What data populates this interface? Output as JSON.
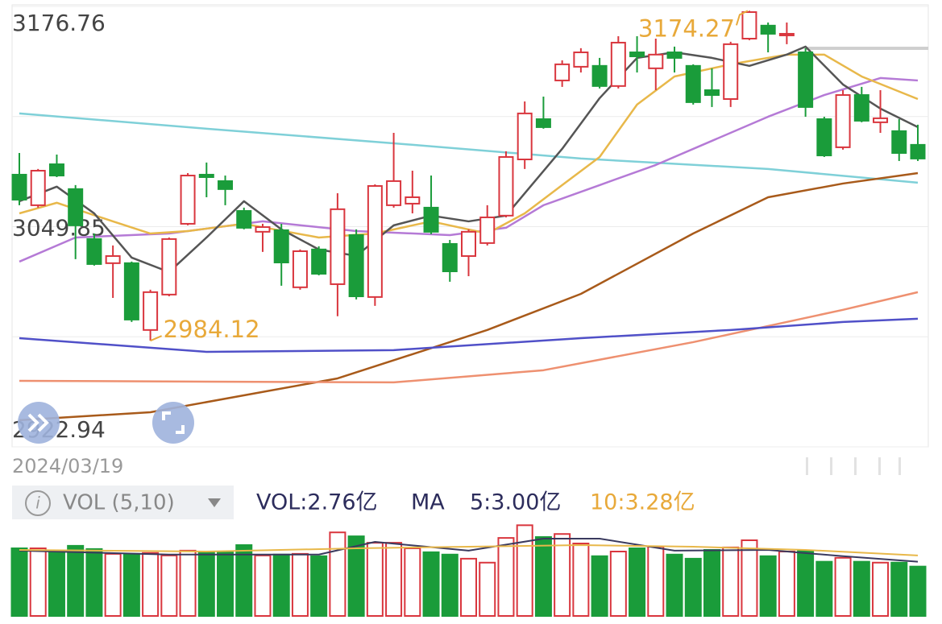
{
  "chart_data": {
    "type": "candlestick",
    "categories": [
      "2024/03/19",
      null,
      null,
      null,
      null,
      null,
      null,
      null,
      null,
      null,
      null,
      null,
      null,
      null,
      null,
      null,
      null,
      null,
      null,
      null,
      null,
      null,
      null,
      null,
      null,
      null,
      null,
      null,
      null,
      null,
      null,
      null,
      null,
      null,
      null,
      null,
      null,
      null,
      null,
      null,
      null,
      null,
      null,
      null,
      null,
      null,
      null,
      null,
      null
    ],
    "open": [
      3079.8,
      3062.2,
      3085.8,
      3071.5,
      3042.7,
      3028.8,
      3028.8,
      2990.3,
      3010.7,
      3051.5,
      3079.8,
      3076.1,
      3058.9,
      3046.9,
      3047.8,
      3014.9,
      3036.7,
      3016.7,
      3045.0,
      3009.3,
      3062.2,
      3063.1,
      3060.8,
      3039.9,
      3032.9,
      3040.4,
      3056.2,
      3088.6,
      3111.8,
      3134.1,
      3142.0,
      3142.5,
      3130.9,
      3150.3,
      3141.1,
      3150.3,
      3142.5,
      3128.5,
      3123.4,
      3158.2,
      3165.7,
      3160.1,
      3150.3,
      3111.8,
      3095.6,
      3125.7,
      3110.0,
      3104.9,
      3097.0
    ],
    "high": [
      3092.3,
      3083.1,
      3091.4,
      3073.8,
      3045.9,
      3039.0,
      3029.7,
      3013.5,
      3043.6,
      3080.7,
      3086.8,
      3079.3,
      3060.8,
      3051.5,
      3051.5,
      3036.7,
      3038.5,
      3069.1,
      3048.3,
      3074.2,
      3103.9,
      3082.1,
      3079.3,
      3042.2,
      3048.3,
      3062.2,
      3093.3,
      3122.0,
      3124.8,
      3145.7,
      3152.7,
      3147.1,
      3159.6,
      3159.6,
      3158.2,
      3153.6,
      3143.4,
      3141.1,
      3156.4,
      3174.27,
      3167.5,
      3167.5,
      3152.7,
      3113.2,
      3128.5,
      3130.4,
      3128.5,
      3111.8,
      3108.6
    ],
    "low": [
      3062.2,
      3060.8,
      3078.4,
      3031.1,
      3027.4,
      3008.8,
      2994.9,
      2984.12,
      3009.7,
      3050.6,
      3066.8,
      3062.2,
      3048.3,
      3035.3,
      3015.8,
      3013.5,
      3021.8,
      2998.2,
      3007.9,
      3004.2,
      3060.8,
      3057.5,
      3045.5,
      3018.1,
      3021.3,
      3039.0,
      3055.2,
      3083.1,
      3106.3,
      3130.4,
      3138.7,
      3129.5,
      3129.5,
      3138.7,
      3128.5,
      3138.7,
      3120.2,
      3118.8,
      3118.8,
      3157.3,
      3150.3,
      3155.0,
      3113.2,
      3090.0,
      3094.2,
      3110.0,
      3103.9,
      3087.7,
      3087.7
    ],
    "close": [
      3065.4,
      3082.1,
      3079.3,
      3050.6,
      3028.3,
      3032.9,
      2996.3,
      3012.1,
      3042.7,
      3079.3,
      3078.4,
      3071.5,
      3049.2,
      3049.6,
      3029.2,
      3035.7,
      3022.7,
      3059.9,
      3009.7,
      3073.3,
      3076.1,
      3066.8,
      3046.9,
      3024.1,
      3046.9,
      3055.2,
      3090.0,
      3115.1,
      3107.2,
      3143.4,
      3150.3,
      3130.9,
      3155.9,
      3148.0,
      3149.0,
      3147.1,
      3121.6,
      3125.7,
      3155.0,
      3173.5,
      3161.0,
      3161.0,
      3118.8,
      3090.9,
      3125.7,
      3110.9,
      3112.3,
      3092.3,
      3089.1
    ],
    "up_color": "#d9363e",
    "down_color": "#1a9c3a",
    "ylim": [
      2922.94,
      3176.76
    ],
    "yticks": [
      3176.76,
      3049.85,
      2922.94
    ],
    "grid": [
      3113.3,
      2986.4
    ],
    "high_label": 39,
    "low_label": 7,
    "lines": [
      {
        "color": "#7fd0d8",
        "x": [
          0,
          10,
          20,
          30,
          40,
          48
        ],
        "values": [
          3115.1,
          3106.3,
          3097.9,
          3089.1,
          3083.1,
          3075.2
        ]
      },
      {
        "color": "#a85a1a",
        "x": [
          0,
          7,
          17,
          25,
          30,
          36,
          40,
          44,
          48
        ],
        "values": [
          2938.3,
          2942.9,
          2962.4,
          2990.3,
          3011.1,
          3045.9,
          3066.8,
          3074.7,
          3080.7
        ]
      },
      {
        "color": "#ee9070",
        "x": [
          0,
          20,
          28,
          36,
          44,
          48
        ],
        "values": [
          2961.0,
          2960.1,
          2967.1,
          2983.3,
          3001.9,
          3012.1
        ]
      },
      {
        "color": "#5050c8",
        "x": [
          0,
          10,
          20,
          30,
          38,
          44,
          48
        ],
        "values": [
          2985.6,
          2977.7,
          2978.7,
          2985.6,
          2990.3,
          2994.9,
          2996.8
        ]
      },
      {
        "color": "#b57ad6",
        "x": [
          0,
          3,
          8,
          13,
          18,
          23,
          26,
          28,
          31,
          34,
          37,
          40,
          43,
          46,
          48
        ],
        "values": [
          3029.7,
          3043.6,
          3045.9,
          3052.9,
          3047.3,
          3045.0,
          3049.2,
          3062.2,
          3073.8,
          3085.4,
          3099.3,
          3113.2,
          3125.7,
          3135.5,
          3134.1
        ]
      },
      {
        "color": "#e8b84a",
        "x": [
          0,
          2,
          5,
          7,
          9,
          12,
          16,
          19,
          22,
          25,
          27,
          29,
          31,
          33,
          35,
          38,
          41,
          43,
          45,
          48
        ],
        "values": [
          3057.5,
          3063.6,
          3052.9,
          3045.9,
          3047.3,
          3051.5,
          3043.6,
          3045.9,
          3052.9,
          3045.9,
          3057.5,
          3073.8,
          3090.0,
          3120.2,
          3136.4,
          3143.4,
          3149.0,
          3149.0,
          3136.4,
          3123.4
        ]
      },
      {
        "color": "#555555",
        "x": [
          0,
          2,
          4,
          6,
          8,
          10,
          12,
          14,
          16,
          18,
          20,
          22,
          24,
          26,
          27,
          29,
          31,
          33,
          35,
          37,
          39,
          41,
          42,
          44,
          46,
          48
        ],
        "values": [
          3064.5,
          3072.9,
          3057.5,
          3032.0,
          3023.7,
          3043.6,
          3064.5,
          3048.3,
          3036.7,
          3033.0,
          3050.6,
          3056.2,
          3052.9,
          3056.2,
          3069.1,
          3094.7,
          3123.9,
          3147.1,
          3150.3,
          3147.1,
          3142.5,
          3149.0,
          3153.6,
          3131.8,
          3117.9,
          3107.2
        ]
      }
    ],
    "volume": {
      "values": [
        3.78,
        3.78,
        3.65,
        3.92,
        3.74,
        3.47,
        3.47,
        3.52,
        3.38,
        3.65,
        3.56,
        3.6,
        3.96,
        3.38,
        3.43,
        3.47,
        3.34,
        4.67,
        4.45,
        4.09,
        4.09,
        3.78,
        3.56,
        3.43,
        3.2,
        2.98,
        4.36,
        5.07,
        4.41,
        4.58,
        4.05,
        3.34,
        3.6,
        3.78,
        3.87,
        3.43,
        3.2,
        3.69,
        3.83,
        4.23,
        3.34,
        3.6,
        3.65,
        3.03,
        3.25,
        3.03,
        2.98,
        2.98,
        2.76
      ],
      "vlim": [
        0,
        5.4
      ],
      "lines": [
        {
          "color": "#3a3a5e",
          "x": [
            0,
            8,
            16,
            19,
            24,
            28,
            31,
            35,
            40,
            44,
            48
          ],
          "values": [
            3.65,
            3.43,
            3.43,
            4.14,
            3.65,
            4.32,
            4.32,
            3.65,
            3.69,
            3.34,
            3.03
          ]
        },
        {
          "color": "#e8b84a",
          "x": [
            0,
            10,
            18,
            24,
            30,
            36,
            42,
            48
          ],
          "values": [
            3.69,
            3.6,
            3.78,
            3.87,
            3.96,
            3.87,
            3.69,
            3.38
          ]
        }
      ],
      "indicator": "VOL (5,10)",
      "vol": "VOL:2.76亿",
      "ma": "MA",
      "ma5": "5:3.00亿",
      "ma10": "10:3.28亿"
    }
  }
}
